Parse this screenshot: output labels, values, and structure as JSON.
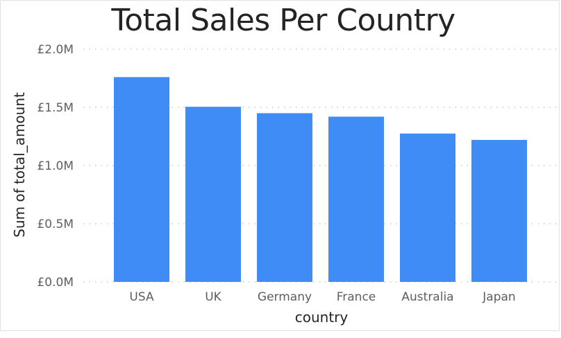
{
  "chart_data": {
    "type": "bar",
    "title": "Total Sales Per Country",
    "xlabel": "country",
    "ylabel": "Sum of total_amount",
    "categories": [
      "USA",
      "UK",
      "Germany",
      "France",
      "Australia",
      "Japan"
    ],
    "values": [
      1760000,
      1505000,
      1450000,
      1420000,
      1275000,
      1220000
    ],
    "yticks": [
      {
        "value": 0,
        "label": "£0.0M"
      },
      {
        "value": 500000,
        "label": "£0.5M"
      },
      {
        "value": 1000000,
        "label": "£1.0M"
      },
      {
        "value": 1500000,
        "label": "£1.5M"
      },
      {
        "value": 2000000,
        "label": "£2.0M"
      }
    ],
    "ylim": [
      0,
      2000000
    ],
    "grid": true,
    "bar_color": "#3f8cf6",
    "grid_color": "#c8c6c4"
  }
}
